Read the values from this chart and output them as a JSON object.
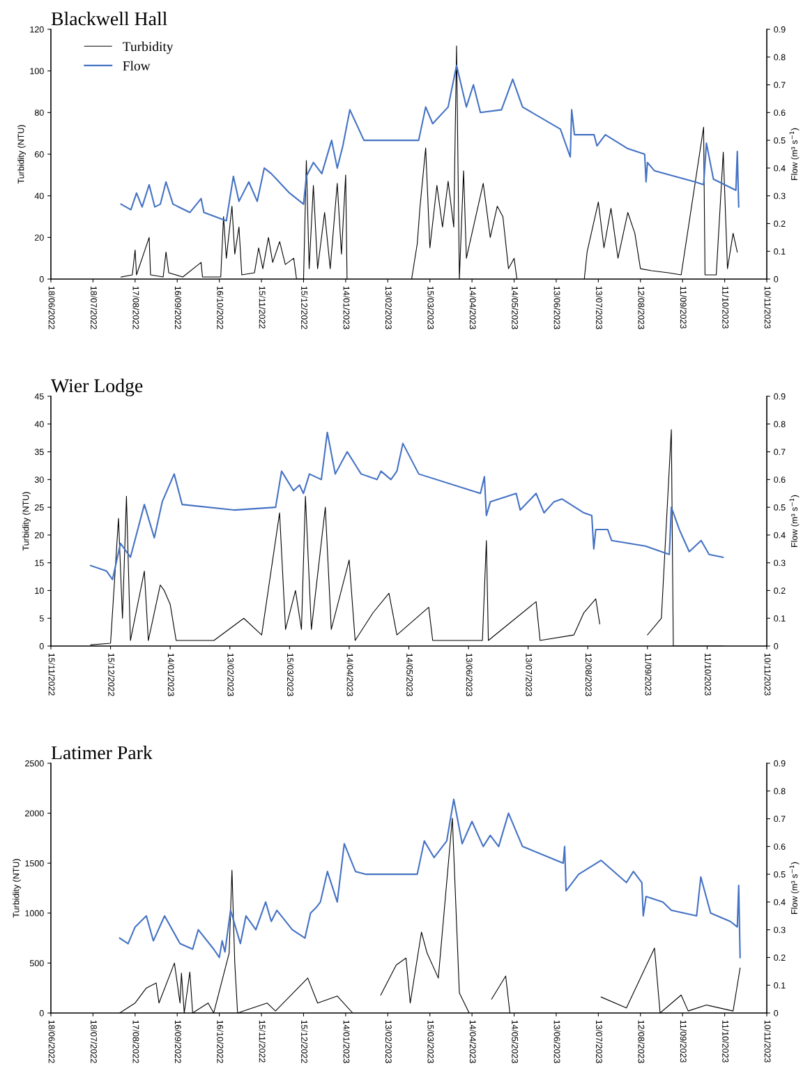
{
  "chart_data": [
    {
      "type": "line",
      "title": "Blackwell Hall",
      "ylabel": "Turbidity (NTU)",
      "y2label": "Flow (m³ s$^{−1}$)",
      "legend": "top left",
      "xlim": [
        "2022-06-18",
        "2023-11-10"
      ],
      "xticks": [
        {
          "value": "2022-06-18",
          "label": "18/06/2022"
        },
        {
          "value": "2022-07-18",
          "label": "18/07/2022"
        },
        {
          "value": "2022-08-17",
          "label": "17/08/2022"
        },
        {
          "value": "2022-09-16",
          "label": "16/09/2022"
        },
        {
          "value": "2022-10-16",
          "label": "16/10/2022"
        },
        {
          "value": "2022-11-15",
          "label": "15/11/2022"
        },
        {
          "value": "2022-12-15",
          "label": "15/12/2022"
        },
        {
          "value": "2023-01-14",
          "label": "14/01/2023"
        },
        {
          "value": "2023-02-13",
          "label": "13/02/2023"
        },
        {
          "value": "2023-03-15",
          "label": "15/03/2023"
        },
        {
          "value": "2023-04-14",
          "label": "14/04/2023"
        },
        {
          "value": "2023-05-14",
          "label": "14/05/2023"
        },
        {
          "value": "2023-06-13",
          "label": "13/06/2023"
        },
        {
          "value": "2023-07-13",
          "label": "13/07/2023"
        },
        {
          "value": "2023-08-12",
          "label": "12/08/2023"
        },
        {
          "value": "2023-09-11",
          "label": "11/09/2023"
        },
        {
          "value": "2023-10-11",
          "label": "11/10/2023"
        },
        {
          "value": "2023-11-10",
          "label": "10/11/2023"
        }
      ],
      "ylim": [
        0,
        120
      ],
      "yticks": [
        0,
        20,
        40,
        60,
        80,
        100,
        120
      ],
      "y2lim": [
        0,
        0.9
      ],
      "y2ticks": [
        0,
        0.1,
        0.2,
        0.3,
        0.4,
        0.5,
        0.6,
        0.7,
        0.8,
        0.9
      ],
      "series": [
        {
          "name": "Turbidity",
          "color": "#000000",
          "x": [
            "2022-08-07",
            "2022-08-15",
            "2022-08-17",
            "2022-08-18",
            "2022-08-27",
            "2022-08-28",
            "2022-09-06",
            "2022-09-08",
            "2022-09-10",
            "2022-09-20",
            "2022-10-03",
            "2022-10-04",
            "2022-10-17",
            "2022-10-19",
            "2022-10-21",
            "2022-10-25",
            "2022-10-27",
            "2022-10-30",
            "2022-11-01",
            "2022-11-10",
            "2022-11-13",
            "2022-11-16",
            "2022-11-20",
            "2022-11-23",
            "2022-11-28",
            "2022-12-02",
            "2022-12-08",
            "2022-12-10",
            "2022-12-15",
            "2022-12-17",
            "2022-12-19",
            "2022-12-22",
            "2022-12-25",
            "2022-12-30",
            "2023-01-03",
            "2023-01-08",
            "2023-01-11",
            "2023-01-14",
            "2023-01-15",
            "2023-02-10",
            "2023-03-02",
            "2023-03-06",
            "2023-03-08",
            "2023-03-12",
            "2023-03-15",
            "2023-03-20",
            "2023-03-24",
            "2023-03-28",
            "2023-04-01",
            "2023-04-03",
            "2023-04-05",
            "2023-04-08",
            "2023-04-10",
            "2023-04-16",
            "2023-04-22",
            "2023-04-27",
            "2023-05-02",
            "2023-05-06",
            "2023-05-10",
            "2023-05-14",
            "2023-05-16",
            "2023-06-10",
            "2023-07-03",
            "2023-07-05",
            "2023-07-13",
            "2023-07-17",
            "2023-07-22",
            "2023-07-27",
            "2023-08-03",
            "2023-08-08",
            "2023-08-12",
            "2023-08-20",
            "2023-09-01",
            "2023-09-10",
            "2023-09-26",
            "2023-09-27",
            "2023-10-05",
            "2023-10-10",
            "2023-10-13",
            "2023-10-17",
            "2023-10-20"
          ],
          "values": [
            1,
            2,
            14,
            2,
            20,
            2,
            1,
            13,
            3,
            1,
            8,
            1,
            1,
            30,
            10,
            35,
            12,
            25,
            2,
            3,
            15,
            5,
            20,
            8,
            18,
            7,
            10,
            0,
            0,
            57,
            5,
            45,
            5,
            32,
            5,
            46,
            12,
            50,
            0,
            null,
            0,
            17,
            35,
            63,
            15,
            45,
            25,
            47,
            25,
            112,
            0,
            52,
            10,
            28,
            46,
            20,
            35,
            30,
            5,
            10,
            0,
            null,
            0,
            13,
            37,
            15,
            34,
            10,
            32,
            22,
            5,
            4,
            3,
            2,
            73,
            2,
            2,
            61,
            5,
            22,
            13
          ]
        },
        {
          "name": "Flow",
          "color": "#4472c4",
          "axis": "y2",
          "x": [
            "2022-08-07",
            "2022-08-14",
            "2022-08-18",
            "2022-08-22",
            "2022-08-27",
            "2022-08-31",
            "2022-09-04",
            "2022-09-08",
            "2022-09-13",
            "2022-09-25",
            "2022-10-03",
            "2022-10-05",
            "2022-10-21",
            "2022-10-26",
            "2022-10-30",
            "2022-11-06",
            "2022-11-12",
            "2022-11-17",
            "2022-11-22",
            "2022-12-05",
            "2022-12-15",
            "2022-12-17",
            "2022-12-22",
            "2022-12-28",
            "2023-01-04",
            "2023-01-08",
            "2023-01-12",
            "2023-01-17",
            "2023-01-27",
            "2023-02-10",
            "2023-03-07",
            "2023-03-12",
            "2023-03-17",
            "2023-03-28",
            "2023-04-03",
            "2023-04-10",
            "2023-04-15",
            "2023-04-20",
            "2023-05-05",
            "2023-05-13",
            "2023-05-20",
            "2023-06-16",
            "2023-06-23",
            "2023-06-24",
            "2023-06-26",
            "2023-07-10",
            "2023-07-12",
            "2023-07-18",
            "2023-08-03",
            "2023-08-15",
            "2023-08-16",
            "2023-08-17",
            "2023-08-22",
            "2023-09-20",
            "2023-09-26",
            "2023-09-28",
            "2023-10-03",
            "2023-10-19",
            "2023-10-20",
            "2023-10-21"
          ],
          "values": [
            0.27,
            0.25,
            0.31,
            0.26,
            0.34,
            0.26,
            0.27,
            0.35,
            0.27,
            0.24,
            0.29,
            0.24,
            0.21,
            0.37,
            0.28,
            0.35,
            0.28,
            0.4,
            0.38,
            0.31,
            0.27,
            0.37,
            0.42,
            0.38,
            0.5,
            0.4,
            0.48,
            0.61,
            0.5,
            0.5,
            0.5,
            0.62,
            0.56,
            0.62,
            0.77,
            0.62,
            0.7,
            0.6,
            0.61,
            0.72,
            0.62,
            0.54,
            0.44,
            0.61,
            0.52,
            0.52,
            0.48,
            0.52,
            0.47,
            0.45,
            0.35,
            0.42,
            0.39,
            0.35,
            0.34,
            0.49,
            0.36,
            0.32,
            0.46,
            0.26
          ]
        }
      ]
    },
    {
      "type": "line",
      "title": "Wier Lodge",
      "ylabel": "Turbidity (NTU)",
      "y2label": "Flow (m³ s$^{−1}$)",
      "xlim": [
        "2022-11-15",
        "2023-11-10"
      ],
      "xticks": [
        {
          "value": "2022-11-15",
          "label": "15/11/2022"
        },
        {
          "value": "2022-12-15",
          "label": "15/12/2022"
        },
        {
          "value": "2023-01-14",
          "label": "14/01/2023"
        },
        {
          "value": "2023-02-13",
          "label": "13/02/2023"
        },
        {
          "value": "2023-03-15",
          "label": "15/03/2023"
        },
        {
          "value": "2023-04-14",
          "label": "14/04/2023"
        },
        {
          "value": "2023-05-14",
          "label": "14/05/2023"
        },
        {
          "value": "2023-06-13",
          "label": "13/06/2023"
        },
        {
          "value": "2023-07-13",
          "label": "13/07/2023"
        },
        {
          "value": "2023-08-12",
          "label": "12/08/2023"
        },
        {
          "value": "2023-09-11",
          "label": "11/09/2023"
        },
        {
          "value": "2023-10-11",
          "label": "11/10/2023"
        },
        {
          "value": "2023-11-10",
          "label": "10/11/2023"
        }
      ],
      "ylim": [
        0,
        45
      ],
      "yticks": [
        0,
        5,
        10,
        15,
        20,
        25,
        30,
        35,
        40,
        45
      ],
      "y2lim": [
        0,
        0.9
      ],
      "y2ticks": [
        0,
        0.1,
        0.2,
        0.3,
        0.4,
        0.5,
        0.6,
        0.7,
        0.8,
        0.9
      ],
      "series": [
        {
          "color": "#000000",
          "x": [
            "2022-12-05",
            "2022-12-15",
            "2022-12-19",
            "2022-12-21",
            "2022-12-23",
            "2022-12-25",
            "2023-01-01",
            "2023-01-03",
            "2023-01-09",
            "2023-01-11",
            "2023-01-14",
            "2023-01-17",
            "2023-02-05",
            "2023-02-20",
            "2023-03-01",
            "2023-03-10",
            "2023-03-13",
            "2023-03-18",
            "2023-03-21",
            "2023-03-23",
            "2023-03-26",
            "2023-04-02",
            "2023-04-05",
            "2023-04-14",
            "2023-04-17",
            "2023-04-26",
            "2023-05-04",
            "2023-05-08",
            "2023-05-24",
            "2023-05-26",
            "2023-06-20",
            "2023-06-22",
            "2023-06-23",
            "2023-07-17",
            "2023-07-19",
            "2023-08-05",
            "2023-08-10",
            "2023-08-16",
            "2023-08-18",
            "2023-09-01",
            "2023-09-11",
            "2023-09-18",
            "2023-09-23",
            "2023-09-24",
            "2023-10-19"
          ],
          "values": [
            0.2,
            0.5,
            23,
            5,
            27,
            1,
            13.5,
            1,
            11,
            10,
            7.5,
            1,
            1,
            5,
            2,
            24,
            3,
            10,
            3,
            27,
            3,
            25,
            3,
            15.5,
            1,
            6,
            9.5,
            2,
            7,
            1,
            1,
            19,
            1,
            8,
            1,
            2,
            6,
            8.5,
            4,
            null,
            2,
            5,
            39,
            0,
            0
          ]
        },
        {
          "color": "#4472c4",
          "axis": "y2",
          "x": [
            "2022-12-05",
            "2022-12-13",
            "2022-12-16",
            "2022-12-20",
            "2022-12-25",
            "2023-01-01",
            "2023-01-06",
            "2023-01-10",
            "2023-01-16",
            "2023-01-20",
            "2023-02-15",
            "2023-03-08",
            "2023-03-11",
            "2023-03-17",
            "2023-03-20",
            "2023-03-22",
            "2023-03-25",
            "2023-03-31",
            "2023-04-03",
            "2023-04-07",
            "2023-04-13",
            "2023-04-20",
            "2023-04-28",
            "2023-04-30",
            "2023-05-05",
            "2023-05-08",
            "2023-05-11",
            "2023-05-19",
            "2023-06-19",
            "2023-06-21",
            "2023-06-22",
            "2023-06-24",
            "2023-07-07",
            "2023-07-09",
            "2023-07-17",
            "2023-07-21",
            "2023-07-26",
            "2023-07-30",
            "2023-08-10",
            "2023-08-14",
            "2023-08-15",
            "2023-08-16",
            "2023-08-22",
            "2023-08-24",
            "2023-09-10",
            "2023-09-22",
            "2023-09-23",
            "2023-09-27",
            "2023-10-02",
            "2023-10-08",
            "2023-10-12",
            "2023-10-19"
          ],
          "values": [
            0.29,
            0.27,
            0.24,
            0.37,
            0.32,
            0.51,
            0.39,
            0.52,
            0.62,
            0.51,
            0.49,
            0.5,
            0.63,
            0.56,
            0.58,
            0.55,
            0.62,
            0.6,
            0.77,
            0.62,
            0.7,
            0.62,
            0.6,
            0.63,
            0.6,
            0.63,
            0.73,
            0.62,
            0.55,
            0.61,
            0.47,
            0.52,
            0.55,
            0.49,
            0.55,
            0.48,
            0.52,
            0.53,
            0.48,
            0.47,
            0.35,
            0.42,
            0.42,
            0.38,
            0.36,
            0.33,
            0.5,
            0.42,
            0.34,
            0.38,
            0.33,
            0.32
          ]
        }
      ]
    },
    {
      "type": "line",
      "title": "Latimer Park",
      "ylabel": "Turbidity (NTU)",
      "y2label": "Flow (m³ s$^{−1}$)",
      "xlim": [
        "2022-06-18",
        "2023-11-10"
      ],
      "xticks": [
        {
          "value": "2022-06-18",
          "label": "18/06/2022"
        },
        {
          "value": "2022-07-18",
          "label": "18/07/2022"
        },
        {
          "value": "2022-08-17",
          "label": "17/08/2022"
        },
        {
          "value": "2022-09-16",
          "label": "16/09/2022"
        },
        {
          "value": "2022-10-16",
          "label": "16/10/2022"
        },
        {
          "value": "2022-11-15",
          "label": "15/11/2022"
        },
        {
          "value": "2022-12-15",
          "label": "15/12/2022"
        },
        {
          "value": "2023-01-14",
          "label": "14/01/2023"
        },
        {
          "value": "2023-02-13",
          "label": "13/02/2023"
        },
        {
          "value": "2023-03-15",
          "label": "15/03/2023"
        },
        {
          "value": "2023-04-14",
          "label": "14/04/2023"
        },
        {
          "value": "2023-05-14",
          "label": "14/05/2023"
        },
        {
          "value": "2023-06-13",
          "label": "13/06/2023"
        },
        {
          "value": "2023-07-13",
          "label": "13/07/2023"
        },
        {
          "value": "2023-08-12",
          "label": "12/08/2023"
        },
        {
          "value": "2023-09-11",
          "label": "11/09/2023"
        },
        {
          "value": "2023-10-11",
          "label": "11/10/2023"
        },
        {
          "value": "2023-11-10",
          "label": "10/11/2023"
        }
      ],
      "ylim": [
        0,
        2500
      ],
      "yticks": [
        0,
        500,
        1000,
        1500,
        2000,
        2500
      ],
      "y2lim": [
        0,
        0.9
      ],
      "y2ticks": [
        0,
        0.1,
        0.2,
        0.3,
        0.4,
        0.5,
        0.6,
        0.7,
        0.8,
        0.9
      ],
      "series": [
        {
          "color": "#000000",
          "x": [
            "2022-08-06",
            "2022-08-17",
            "2022-08-25",
            "2022-09-01",
            "2022-09-03",
            "2022-09-14",
            "2022-09-18",
            "2022-09-19",
            "2022-09-21",
            "2022-09-25",
            "2022-09-27",
            "2022-10-08",
            "2022-10-12",
            "2022-10-23",
            "2022-10-25",
            "2022-10-27",
            "2022-10-29",
            "2022-11-19",
            "2022-11-25",
            "2022-12-18",
            "2022-12-25",
            "2023-01-08",
            "2023-01-19",
            "2023-01-30",
            "2023-02-08",
            "2023-02-19",
            "2023-02-26",
            "2023-03-01",
            "2023-03-09",
            "2023-03-13",
            "2023-03-21",
            "2023-03-31",
            "2023-04-05",
            "2023-04-12",
            "2023-04-25",
            "2023-04-28",
            "2023-05-08",
            "2023-05-11",
            "2023-07-10",
            "2023-07-15",
            "2023-08-02",
            "2023-08-22",
            "2023-08-26",
            "2023-09-10",
            "2023-09-15",
            "2023-09-28",
            "2023-10-17",
            "2023-10-22"
          ],
          "values": [
            0,
            100,
            250,
            300,
            100,
            500,
            100,
            400,
            0,
            410,
            0,
            100,
            0,
            600,
            1430,
            500,
            0,
            100,
            20,
            350,
            100,
            170,
            0,
            null,
            180,
            480,
            550,
            100,
            810,
            600,
            350,
            1950,
            200,
            0,
            null,
            140,
            370,
            0,
            null,
            160,
            50,
            650,
            0,
            180,
            20,
            80,
            20,
            450
          ]
        },
        {
          "color": "#4472c4",
          "axis": "y2",
          "x": [
            "2022-08-06",
            "2022-08-12",
            "2022-08-17",
            "2022-08-25",
            "2022-08-30",
            "2022-09-07",
            "2022-09-18",
            "2022-09-27",
            "2022-10-01",
            "2022-10-12",
            "2022-10-16",
            "2022-10-18",
            "2022-10-20",
            "2022-10-24",
            "2022-10-31",
            "2022-11-04",
            "2022-11-11",
            "2022-11-18",
            "2022-11-22",
            "2022-11-26",
            "2022-12-07",
            "2022-12-16",
            "2022-12-20",
            "2022-12-24",
            "2022-12-27",
            "2023-01-01",
            "2023-01-08",
            "2023-01-13",
            "2023-01-21",
            "2023-01-28",
            "2023-03-06",
            "2023-03-11",
            "2023-03-18",
            "2023-03-27",
            "2023-04-01",
            "2023-04-07",
            "2023-04-14",
            "2023-04-22",
            "2023-04-27",
            "2023-05-03",
            "2023-05-10",
            "2023-05-20",
            "2023-06-18",
            "2023-06-19",
            "2023-06-20",
            "2023-06-29",
            "2023-07-15",
            "2023-08-02",
            "2023-08-07",
            "2023-08-13",
            "2023-08-14",
            "2023-08-16",
            "2023-08-28",
            "2023-09-03",
            "2023-09-21",
            "2023-09-24",
            "2023-10-01",
            "2023-10-15",
            "2023-10-20",
            "2023-10-21",
            "2023-10-22"
          ],
          "values": [
            0.27,
            0.25,
            0.31,
            0.35,
            0.26,
            0.35,
            0.25,
            0.23,
            0.3,
            0.23,
            0.2,
            0.26,
            0.22,
            0.37,
            0.25,
            0.35,
            0.3,
            0.4,
            0.33,
            0.37,
            0.3,
            0.27,
            0.36,
            0.38,
            0.4,
            0.51,
            0.4,
            0.61,
            0.51,
            0.5,
            0.5,
            0.62,
            0.56,
            0.62,
            0.77,
            0.61,
            0.69,
            0.6,
            0.64,
            0.6,
            0.72,
            0.6,
            0.54,
            0.6,
            0.44,
            0.5,
            0.55,
            0.47,
            0.51,
            0.47,
            0.35,
            0.42,
            0.4,
            0.37,
            0.35,
            0.49,
            0.36,
            0.33,
            0.31,
            0.46,
            0.2
          ]
        }
      ]
    }
  ]
}
